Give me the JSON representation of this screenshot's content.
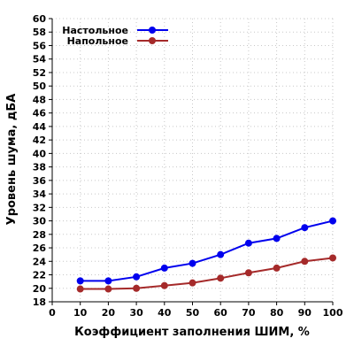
{
  "chart_data": {
    "type": "line",
    "xlabel": "Коэффициент заполнения ШИМ, %",
    "ylabel": "Уровень шума, дБА",
    "xlim": [
      0,
      100
    ],
    "ylim": [
      18,
      60
    ],
    "x_ticks": [
      0,
      10,
      20,
      30,
      40,
      50,
      60,
      70,
      80,
      90,
      100
    ],
    "y_ticks": [
      18,
      20,
      22,
      24,
      26,
      28,
      30,
      32,
      34,
      36,
      38,
      40,
      42,
      44,
      46,
      48,
      50,
      52,
      54,
      56,
      58,
      60
    ],
    "grid": true,
    "legend_position": "top-left",
    "x": [
      10,
      20,
      30,
      40,
      50,
      60,
      70,
      80,
      90,
      100
    ],
    "series": [
      {
        "name": "Настольное",
        "color": "#0000ee",
        "values": [
          21.1,
          21.1,
          21.7,
          23.0,
          23.7,
          25.0,
          26.7,
          27.4,
          29.0,
          30.0
        ]
      },
      {
        "name": "Напольное",
        "color": "#a52a2a",
        "values": [
          19.9,
          19.9,
          20.0,
          20.4,
          20.8,
          21.5,
          22.3,
          23.0,
          24.0,
          24.5
        ]
      }
    ]
  }
}
